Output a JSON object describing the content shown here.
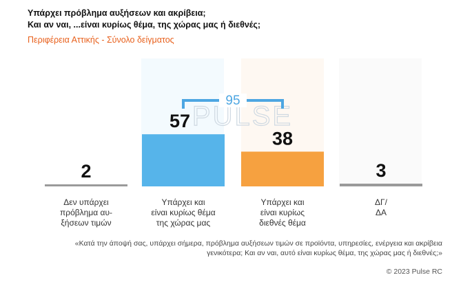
{
  "title_line1": "Υπάρχει πρόβλημα αυξήσεων και ακρίβεια;",
  "title_line2": "Και αν ναι, ...είναι κυρίως θέμα, της χώρας μας ή διεθνές;",
  "subtitle": "Περιφέρεια Αττικής - Σύνολο δείγματος",
  "watermark": "PULSE",
  "question": "«Κατά την άποψή σας, υπάρχει σήμερα, πρόβλημα αυξήσεων τιμών σε προϊόντα, υπηρεσίες, ενέργεια και ακρίβεια γενικότερα; Και αν ναι, αυτό είναι κυρίως θέμα, της χώρας μας ή διεθνές;»",
  "copyright": "© 2023 Pulse RC",
  "colors": {
    "blue": "#56b4ea",
    "orange": "#f6a140",
    "gray": "#9a9a9a",
    "bracket": "#4da6e2",
    "subtitle": "#e8601c"
  },
  "chart_data": {
    "type": "bar",
    "title": "Υπάρχει πρόβλημα αυξήσεων και ακρίβεια; Και αν ναι, ...είναι κυρίως θέμα, της χώρας μας ή διεθνές;",
    "categories": [
      "Δεν υπάρχει πρόβλημα αυ- ξήσεων τιμών",
      "Υπάρχει και είναι κυρίως θέμα της χώρας μας",
      "Υπάρχει και είναι κυρίως διεθνές θέμα",
      "ΔΓ/ ΔΑ"
    ],
    "category_lines": [
      [
        "Δεν υπάρχει",
        "πρόβλημα αυ-",
        "ξήσεων τιμών"
      ],
      [
        "Υπάρχει και",
        "είναι κυρίως θέμα",
        "της  χώρας μας"
      ],
      [
        "Υπάρχει και",
        "είναι κυρίως",
        "διεθνές θέμα"
      ],
      [
        "ΔΓ/",
        "ΔΑ"
      ]
    ],
    "values": [
      2,
      57,
      38,
      3
    ],
    "bar_colors": [
      "#9a9a9a",
      "#56b4ea",
      "#f6a140",
      "#9a9a9a"
    ],
    "bracket": {
      "label": "95",
      "spans": [
        1,
        2
      ],
      "total": 95
    },
    "ylim": [
      0,
      60
    ],
    "xlabel": "",
    "ylabel": ""
  }
}
